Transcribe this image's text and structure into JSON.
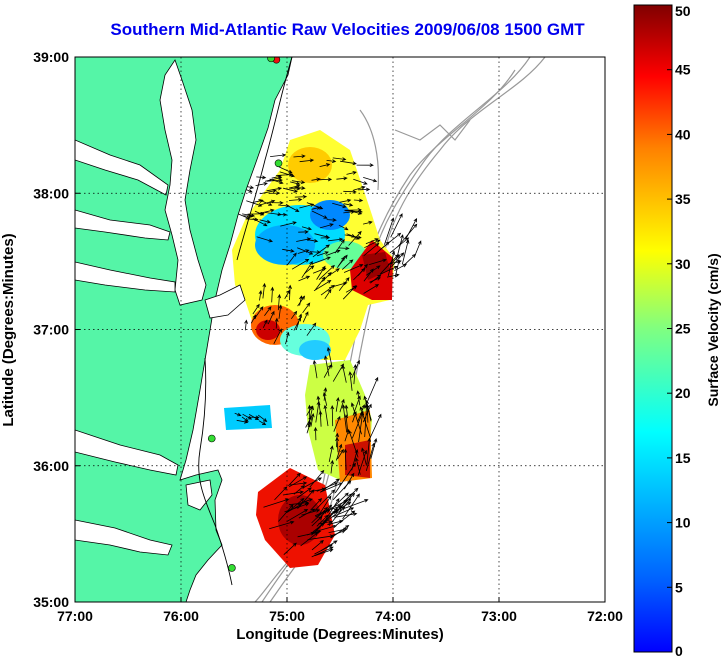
{
  "title": "Southern Mid-Atlantic Raw Velocities 2009/06/08 1500 GMT",
  "map": {
    "xlabel": "Longitude (Degrees:Minutes)",
    "ylabel": "Latitude (Degrees:Minutes)",
    "x_ticks": [
      "77:00",
      "76:00",
      "75:00",
      "74:00",
      "73:00",
      "72:00"
    ],
    "y_ticks": [
      "39:00",
      "38:00",
      "37:00",
      "36:00",
      "35:00"
    ],
    "lon_range_west": [
      77,
      72
    ],
    "lat_range": [
      35,
      39
    ],
    "grid": true
  },
  "colorbar": {
    "label": "Surface Velocity (cm/s)",
    "ticks": [
      "0",
      "5",
      "10",
      "15",
      "20",
      "25",
      "30",
      "35",
      "40",
      "45",
      "50"
    ],
    "range": [
      0,
      50
    ],
    "colormap": "jet"
  },
  "colors": {
    "land": "#55f5a7",
    "title": "#0000ee",
    "coast": "#000000",
    "bathymetry": "#999999",
    "site_marker": "#33dd33",
    "site_marker_alt": "#ee1111"
  },
  "sites": [
    {
      "lon": 75.1,
      "lat": 38.98,
      "kind": "alt"
    },
    {
      "lon": 75.15,
      "lat": 38.99,
      "kind": "normal"
    },
    {
      "lon": 75.08,
      "lat": 38.22,
      "kind": "normal"
    },
    {
      "lon": 75.71,
      "lat": 36.2,
      "kind": "normal"
    },
    {
      "lon": 75.52,
      "lat": 35.25,
      "kind": "normal"
    }
  ]
}
